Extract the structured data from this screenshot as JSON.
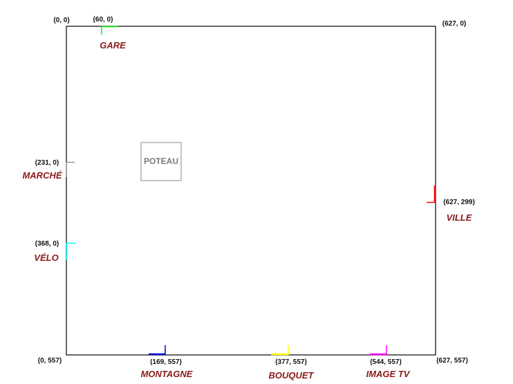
{
  "corners": {
    "top_left": "(0, 0)",
    "top_right": "(627, 0)",
    "bottom_left": "(0, 557)",
    "bottom_right": "(627, 557)"
  },
  "poteau": {
    "label": "POTEAU"
  },
  "label_color": "#8b1a1a",
  "markers": [
    {
      "id": "gare",
      "name": "GARE",
      "coord": "(60, 0)",
      "color": "#00ff00"
    },
    {
      "id": "marche",
      "name": "MARCHÉ",
      "coord": "(231, 0)",
      "color": "#888888"
    },
    {
      "id": "velo",
      "name": "VÉLO",
      "coord": "(368, 0)",
      "color": "#00ffff"
    },
    {
      "id": "ville",
      "name": "VILLE",
      "coord": "(627, 299)",
      "color": "#ff0000"
    },
    {
      "id": "montagne",
      "name": "MONTAGNE",
      "coord": "(169, 557)",
      "color": "#0000cc"
    },
    {
      "id": "bouquet",
      "name": "BOUQUET",
      "coord": "(377, 557)",
      "color": "#ffff00"
    },
    {
      "id": "image-tv",
      "name": "IMAGE TV",
      "coord": "(544, 557)",
      "color": "#ff00ff"
    }
  ]
}
